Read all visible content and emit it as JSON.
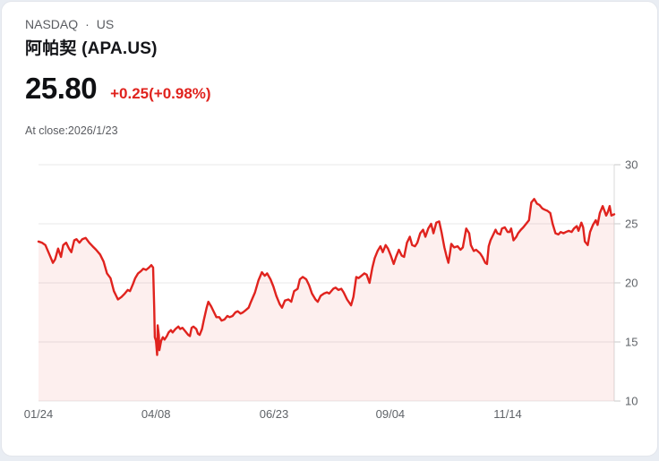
{
  "header": {
    "exchange": "NASDAQ",
    "separator": "·",
    "region": "US",
    "name": "阿帕契 (APA.US)",
    "price": "25.80",
    "change": "+0.25(+0.98%)",
    "as_of": "At close:2026/1/23"
  },
  "colors": {
    "up_red": "#e0231e",
    "text_primary": "#141519",
    "text_secondary": "#5a5c61"
  },
  "chart_data": {
    "type": "area",
    "title": "",
    "xlabel": "",
    "ylabel": "",
    "y_range": [
      10,
      30
    ],
    "y_ticks": [
      30,
      25,
      20,
      15,
      10
    ],
    "x_ticks": [
      {
        "label": "01/24",
        "pos": 0.0
      },
      {
        "label": "04/08",
        "pos": 0.204
      },
      {
        "label": "06/23",
        "pos": 0.409
      },
      {
        "label": "09/04",
        "pos": 0.611
      },
      {
        "label": "11/14",
        "pos": 0.815
      }
    ],
    "grid": true,
    "legend": "none",
    "line_color": "#e0231e",
    "fill_color": "rgba(224,35,30,0.075)",
    "grid_color": "#e9e9e9",
    "axis_color": "#d9d9d9",
    "points": [
      [
        0,
        23.5
      ],
      [
        0.006,
        23.4
      ],
      [
        0.012,
        23.2
      ],
      [
        0.019,
        22.4
      ],
      [
        0.025,
        21.7
      ],
      [
        0.029,
        22.0
      ],
      [
        0.034,
        22.9
      ],
      [
        0.039,
        22.2
      ],
      [
        0.043,
        23.2
      ],
      [
        0.048,
        23.4
      ],
      [
        0.053,
        22.9
      ],
      [
        0.057,
        22.6
      ],
      [
        0.062,
        23.6
      ],
      [
        0.066,
        23.7
      ],
      [
        0.071,
        23.4
      ],
      [
        0.076,
        23.7
      ],
      [
        0.082,
        23.8
      ],
      [
        0.088,
        23.4
      ],
      [
        0.094,
        23.1
      ],
      [
        0.1,
        22.8
      ],
      [
        0.107,
        22.4
      ],
      [
        0.113,
        21.8
      ],
      [
        0.119,
        20.8
      ],
      [
        0.125,
        20.4
      ],
      [
        0.131,
        19.3
      ],
      [
        0.138,
        18.6
      ],
      [
        0.144,
        18.8
      ],
      [
        0.15,
        19.1
      ],
      [
        0.155,
        19.4
      ],
      [
        0.159,
        19.3
      ],
      [
        0.164,
        19.9
      ],
      [
        0.168,
        20.4
      ],
      [
        0.173,
        20.8
      ],
      [
        0.178,
        21.0
      ],
      [
        0.182,
        21.2
      ],
      [
        0.187,
        21.1
      ],
      [
        0.192,
        21.3
      ],
      [
        0.196,
        21.5
      ],
      [
        0.199,
        21.3
      ],
      [
        0.201,
        18.0
      ],
      [
        0.202,
        15.4
      ],
      [
        0.204,
        15.1
      ],
      [
        0.206,
        13.9
      ],
      [
        0.207,
        16.4
      ],
      [
        0.209,
        15.6
      ],
      [
        0.21,
        14.3
      ],
      [
        0.213,
        15.1
      ],
      [
        0.216,
        15.4
      ],
      [
        0.219,
        15.2
      ],
      [
        0.223,
        15.5
      ],
      [
        0.226,
        15.8
      ],
      [
        0.23,
        16.0
      ],
      [
        0.233,
        15.8
      ],
      [
        0.238,
        16.1
      ],
      [
        0.243,
        16.3
      ],
      [
        0.246,
        16.1
      ],
      [
        0.25,
        16.2
      ],
      [
        0.255,
        15.9
      ],
      [
        0.26,
        15.6
      ],
      [
        0.263,
        15.5
      ],
      [
        0.266,
        16.2
      ],
      [
        0.269,
        16.3
      ],
      [
        0.274,
        16.1
      ],
      [
        0.277,
        15.7
      ],
      [
        0.28,
        15.6
      ],
      [
        0.284,
        16.1
      ],
      [
        0.287,
        16.8
      ],
      [
        0.292,
        17.9
      ],
      [
        0.295,
        18.4
      ],
      [
        0.3,
        18.0
      ],
      [
        0.305,
        17.5
      ],
      [
        0.309,
        17.1
      ],
      [
        0.314,
        17.1
      ],
      [
        0.318,
        16.8
      ],
      [
        0.323,
        16.9
      ],
      [
        0.328,
        17.2
      ],
      [
        0.332,
        17.1
      ],
      [
        0.337,
        17.2
      ],
      [
        0.342,
        17.5
      ],
      [
        0.346,
        17.6
      ],
      [
        0.351,
        17.4
      ],
      [
        0.355,
        17.5
      ],
      [
        0.36,
        17.7
      ],
      [
        0.365,
        17.9
      ],
      [
        0.369,
        18.4
      ],
      [
        0.376,
        19.2
      ],
      [
        0.382,
        20.2
      ],
      [
        0.388,
        20.9
      ],
      [
        0.393,
        20.6
      ],
      [
        0.397,
        20.8
      ],
      [
        0.403,
        20.3
      ],
      [
        0.408,
        19.7
      ],
      [
        0.413,
        18.9
      ],
      [
        0.419,
        18.2
      ],
      [
        0.423,
        17.9
      ],
      [
        0.428,
        18.5
      ],
      [
        0.434,
        18.6
      ],
      [
        0.439,
        18.4
      ],
      [
        0.444,
        19.3
      ],
      [
        0.45,
        19.5
      ],
      [
        0.454,
        20.3
      ],
      [
        0.459,
        20.5
      ],
      [
        0.465,
        20.3
      ],
      [
        0.47,
        19.8
      ],
      [
        0.475,
        19.1
      ],
      [
        0.481,
        18.6
      ],
      [
        0.485,
        18.4
      ],
      [
        0.49,
        18.9
      ],
      [
        0.496,
        19.1
      ],
      [
        0.501,
        19.2
      ],
      [
        0.505,
        19.1
      ],
      [
        0.512,
        19.5
      ],
      [
        0.516,
        19.6
      ],
      [
        0.521,
        19.4
      ],
      [
        0.526,
        19.5
      ],
      [
        0.53,
        19.2
      ],
      [
        0.536,
        18.6
      ],
      [
        0.543,
        18.1
      ],
      [
        0.547,
        18.8
      ],
      [
        0.552,
        20.5
      ],
      [
        0.556,
        20.4
      ],
      [
        0.561,
        20.6
      ],
      [
        0.566,
        20.8
      ],
      [
        0.57,
        20.7
      ],
      [
        0.575,
        20.0
      ],
      [
        0.58,
        21.3
      ],
      [
        0.584,
        22.1
      ],
      [
        0.589,
        22.7
      ],
      [
        0.594,
        23.1
      ],
      [
        0.598,
        22.6
      ],
      [
        0.603,
        23.2
      ],
      [
        0.607,
        22.9
      ],
      [
        0.612,
        22.3
      ],
      [
        0.617,
        21.6
      ],
      [
        0.621,
        22.2
      ],
      [
        0.626,
        22.8
      ],
      [
        0.631,
        22.3
      ],
      [
        0.635,
        22.2
      ],
      [
        0.64,
        23.4
      ],
      [
        0.645,
        23.9
      ],
      [
        0.649,
        23.2
      ],
      [
        0.654,
        23.1
      ],
      [
        0.658,
        23.4
      ],
      [
        0.663,
        24.2
      ],
      [
        0.668,
        24.5
      ],
      [
        0.672,
        23.9
      ],
      [
        0.677,
        24.6
      ],
      [
        0.682,
        25.0
      ],
      [
        0.686,
        24.2
      ],
      [
        0.691,
        25.1
      ],
      [
        0.696,
        25.2
      ],
      [
        0.7,
        24.3
      ],
      [
        0.705,
        23.0
      ],
      [
        0.709,
        22.2
      ],
      [
        0.712,
        21.7
      ],
      [
        0.715,
        22.6
      ],
      [
        0.717,
        23.3
      ],
      [
        0.722,
        23.0
      ],
      [
        0.728,
        23.1
      ],
      [
        0.733,
        22.8
      ],
      [
        0.737,
        23.0
      ],
      [
        0.743,
        24.6
      ],
      [
        0.748,
        24.2
      ],
      [
        0.751,
        23.2
      ],
      [
        0.756,
        22.7
      ],
      [
        0.76,
        22.8
      ],
      [
        0.767,
        22.5
      ],
      [
        0.771,
        22.2
      ],
      [
        0.776,
        21.7
      ],
      [
        0.779,
        21.6
      ],
      [
        0.782,
        23.1
      ],
      [
        0.785,
        23.6
      ],
      [
        0.79,
        24.1
      ],
      [
        0.794,
        24.5
      ],
      [
        0.797,
        24.2
      ],
      [
        0.802,
        24.1
      ],
      [
        0.805,
        24.6
      ],
      [
        0.81,
        24.7
      ],
      [
        0.815,
        24.3
      ],
      [
        0.818,
        24.3
      ],
      [
        0.821,
        24.6
      ],
      [
        0.825,
        23.6
      ],
      [
        0.83,
        23.9
      ],
      [
        0.833,
        24.2
      ],
      [
        0.838,
        24.5
      ],
      [
        0.842,
        24.7
      ],
      [
        0.847,
        25.0
      ],
      [
        0.852,
        25.3
      ],
      [
        0.856,
        26.8
      ],
      [
        0.861,
        27.1
      ],
      [
        0.866,
        26.7
      ],
      [
        0.87,
        26.6
      ],
      [
        0.875,
        26.3
      ],
      [
        0.879,
        26.2
      ],
      [
        0.884,
        26.1
      ],
      [
        0.889,
        25.9
      ],
      [
        0.893,
        25.0
      ],
      [
        0.898,
        24.2
      ],
      [
        0.903,
        24.1
      ],
      [
        0.907,
        24.3
      ],
      [
        0.912,
        24.2
      ],
      [
        0.916,
        24.3
      ],
      [
        0.921,
        24.4
      ],
      [
        0.926,
        24.3
      ],
      [
        0.93,
        24.6
      ],
      [
        0.935,
        24.8
      ],
      [
        0.938,
        24.4
      ],
      [
        0.943,
        25.1
      ],
      [
        0.946,
        24.7
      ],
      [
        0.949,
        23.5
      ],
      [
        0.954,
        23.2
      ],
      [
        0.958,
        24.3
      ],
      [
        0.963,
        24.9
      ],
      [
        0.968,
        25.3
      ],
      [
        0.971,
        24.9
      ],
      [
        0.975,
        25.9
      ],
      [
        0.98,
        26.5
      ],
      [
        0.983,
        26.1
      ],
      [
        0.986,
        25.7
      ],
      [
        0.989,
        26.0
      ],
      [
        0.992,
        26.5
      ],
      [
        0.995,
        25.7
      ],
      [
        1,
        25.8
      ]
    ]
  }
}
